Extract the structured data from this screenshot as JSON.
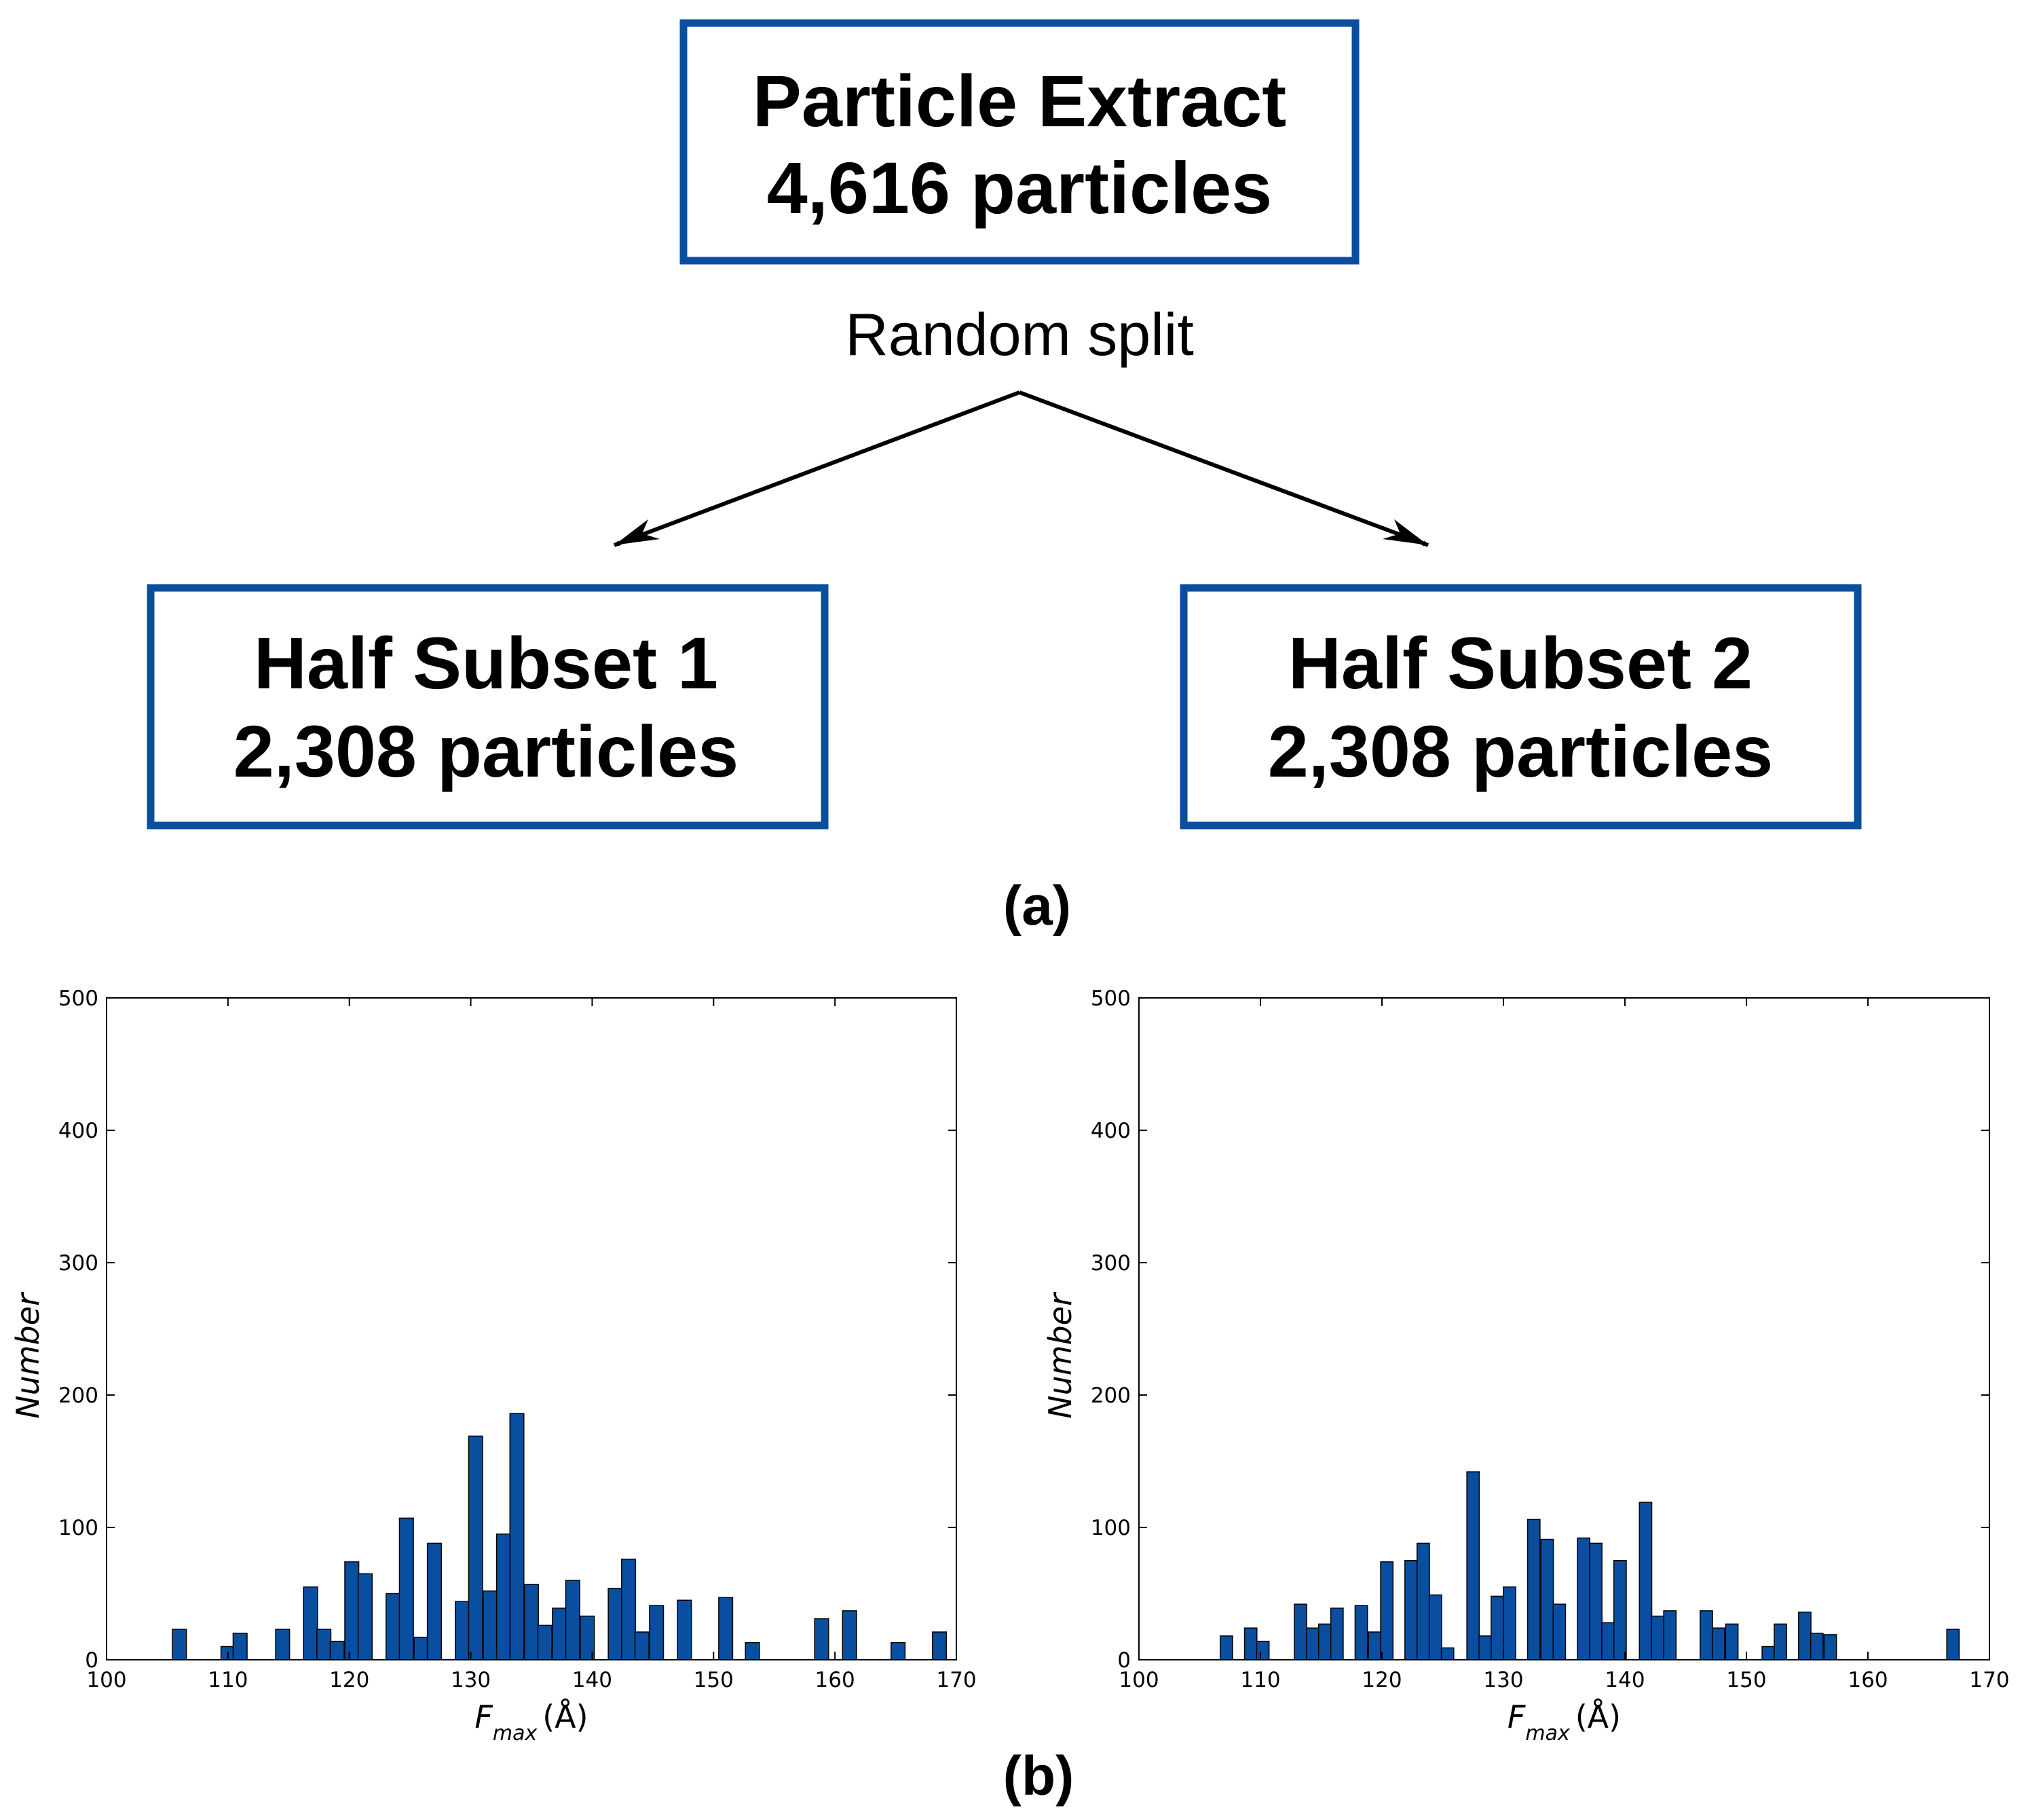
{
  "flow": {
    "top_box": {
      "line1": "Particle Extract",
      "line2": "4,616 particles"
    },
    "split_label": "Random split",
    "left_box": {
      "line1": "Half Subset 1",
      "line2": "2,308 particles"
    },
    "right_box": {
      "line1": "Half Subset 2",
      "line2": "2,308 particles"
    },
    "panel_label": "(a)"
  },
  "panel_b_label": "(b)",
  "colors": {
    "box_border": "#0a4ea0",
    "bar_fill": "#0a4ea0",
    "bar_edge": "#000000"
  },
  "chart_data": [
    {
      "type": "bar",
      "xlabel": {
        "symbol": "F",
        "subscript": "max",
        "unit": "(Å)"
      },
      "ylabel": "Number",
      "xlim": [
        100,
        170
      ],
      "ylim": [
        0,
        500
      ],
      "xticks": [
        100,
        110,
        120,
        130,
        140,
        150,
        160,
        170
      ],
      "yticks": [
        0,
        100,
        200,
        300,
        400,
        500
      ],
      "bin_width": 1.15,
      "bins": [
        {
          "x": 106,
          "y": 23
        },
        {
          "x": 110,
          "y": 10
        },
        {
          "x": 111,
          "y": 20
        },
        {
          "x": 114.5,
          "y": 23
        },
        {
          "x": 116.8,
          "y": 55
        },
        {
          "x": 117.9,
          "y": 23
        },
        {
          "x": 119,
          "y": 14
        },
        {
          "x": 120.2,
          "y": 74
        },
        {
          "x": 121.3,
          "y": 65
        },
        {
          "x": 123.6,
          "y": 50
        },
        {
          "x": 124.7,
          "y": 107
        },
        {
          "x": 125.9,
          "y": 17
        },
        {
          "x": 127,
          "y": 88
        },
        {
          "x": 129.3,
          "y": 44
        },
        {
          "x": 130.4,
          "y": 169
        },
        {
          "x": 131.6,
          "y": 52
        },
        {
          "x": 132.7,
          "y": 95
        },
        {
          "x": 133.8,
          "y": 186
        },
        {
          "x": 135,
          "y": 57
        },
        {
          "x": 136.1,
          "y": 26
        },
        {
          "x": 137.3,
          "y": 39
        },
        {
          "x": 138.4,
          "y": 60
        },
        {
          "x": 139.6,
          "y": 33
        },
        {
          "x": 141.9,
          "y": 54
        },
        {
          "x": 143,
          "y": 76
        },
        {
          "x": 144.1,
          "y": 21
        },
        {
          "x": 145.3,
          "y": 41
        },
        {
          "x": 147.6,
          "y": 45
        },
        {
          "x": 151,
          "y": 47
        },
        {
          "x": 153.2,
          "y": 13
        },
        {
          "x": 158.9,
          "y": 31
        },
        {
          "x": 161.2,
          "y": 37
        },
        {
          "x": 165.2,
          "y": 13
        },
        {
          "x": 168.6,
          "y": 21
        }
      ]
    },
    {
      "type": "bar",
      "xlabel": {
        "symbol": "F",
        "subscript": "max",
        "unit": "(Å)"
      },
      "ylabel": "Number",
      "xlim": [
        100,
        170
      ],
      "ylim": [
        0,
        500
      ],
      "xticks": [
        100,
        110,
        120,
        130,
        140,
        150,
        160,
        170
      ],
      "yticks": [
        0,
        100,
        200,
        300,
        400,
        500
      ],
      "bin_width": 1.02,
      "bins": [
        {
          "x": 107.2,
          "y": 18
        },
        {
          "x": 109.2,
          "y": 24
        },
        {
          "x": 110.2,
          "y": 14
        },
        {
          "x": 113.3,
          "y": 42
        },
        {
          "x": 114.3,
          "y": 24
        },
        {
          "x": 115.3,
          "y": 27
        },
        {
          "x": 116.3,
          "y": 39
        },
        {
          "x": 118.3,
          "y": 41
        },
        {
          "x": 119.4,
          "y": 21
        },
        {
          "x": 120.4,
          "y": 74
        },
        {
          "x": 122.4,
          "y": 75
        },
        {
          "x": 123.4,
          "y": 88
        },
        {
          "x": 124.4,
          "y": 49
        },
        {
          "x": 125.4,
          "y": 9
        },
        {
          "x": 127.5,
          "y": 142
        },
        {
          "x": 128.5,
          "y": 18
        },
        {
          "x": 129.5,
          "y": 48
        },
        {
          "x": 130.5,
          "y": 55
        },
        {
          "x": 132.5,
          "y": 106
        },
        {
          "x": 133.6,
          "y": 91
        },
        {
          "x": 134.6,
          "y": 42
        },
        {
          "x": 136.6,
          "y": 92
        },
        {
          "x": 137.6,
          "y": 88
        },
        {
          "x": 138.6,
          "y": 28
        },
        {
          "x": 139.6,
          "y": 75
        },
        {
          "x": 141.7,
          "y": 119
        },
        {
          "x": 142.7,
          "y": 33
        },
        {
          "x": 143.7,
          "y": 37
        },
        {
          "x": 146.7,
          "y": 37
        },
        {
          "x": 147.7,
          "y": 24
        },
        {
          "x": 148.8,
          "y": 27
        },
        {
          "x": 151.8,
          "y": 10
        },
        {
          "x": 152.8,
          "y": 27
        },
        {
          "x": 154.8,
          "y": 36
        },
        {
          "x": 155.8,
          "y": 20
        },
        {
          "x": 156.9,
          "y": 19
        },
        {
          "x": 167,
          "y": 23
        }
      ]
    }
  ]
}
